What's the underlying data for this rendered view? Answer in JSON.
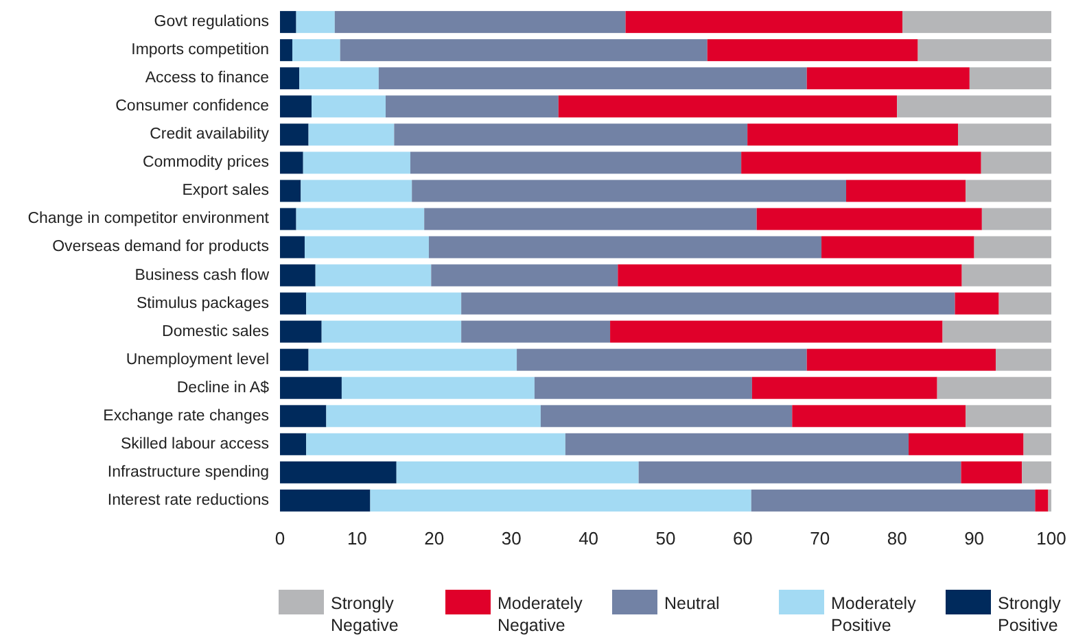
{
  "chart_data": {
    "type": "bar",
    "orientation": "horizontal",
    "stacked": true,
    "categories": [
      "Govt regulations",
      "Imports competition",
      "Access to finance",
      "Consumer confidence",
      "Credit availability",
      "Commodity prices",
      "Export sales",
      "Change in competitor environment",
      "Overseas demand for products",
      "Business cash flow",
      "Stimulus packages",
      "Domestic sales",
      "Unemployment level",
      "Decline in A$",
      "Exchange rate changes",
      "Skilled labour access",
      "Infrastructure spending",
      "Interest rate reductions"
    ],
    "series": [
      {
        "name": "Strongly Positive",
        "color": "#002a5c",
        "values": [
          2.1,
          1.6,
          2.5,
          4.1,
          3.7,
          3.0,
          2.7,
          2.1,
          3.2,
          4.6,
          3.4,
          5.4,
          3.7,
          8.0,
          6.0,
          3.4,
          15.1,
          11.7
        ]
      },
      {
        "name": "Moderately Positive",
        "color": "#a3daf3",
        "values": [
          5.0,
          6.2,
          10.3,
          9.6,
          11.1,
          13.9,
          14.4,
          16.6,
          16.1,
          15.0,
          20.1,
          18.1,
          27.0,
          25.0,
          27.8,
          33.6,
          31.4,
          49.4
        ]
      },
      {
        "name": "Neutral",
        "color": "#7282a5",
        "values": [
          37.7,
          47.6,
          55.5,
          22.4,
          45.8,
          42.9,
          56.3,
          43.1,
          50.9,
          24.2,
          64.0,
          19.3,
          37.6,
          28.2,
          32.6,
          44.5,
          41.8,
          36.8
        ]
      },
      {
        "name": "Moderately Negative",
        "color": "#e0002a",
        "values": [
          35.9,
          27.3,
          21.1,
          43.9,
          27.3,
          31.1,
          15.5,
          29.2,
          19.8,
          44.6,
          5.7,
          43.1,
          24.5,
          24.0,
          22.5,
          14.9,
          7.9,
          1.7
        ]
      },
      {
        "name": "Strongly Negative",
        "color": "#b5b6b8",
        "values": [
          19.3,
          17.3,
          10.6,
          20.0,
          12.1,
          9.1,
          11.1,
          9.0,
          10.0,
          11.6,
          6.8,
          14.1,
          7.2,
          14.8,
          11.1,
          3.6,
          3.8,
          0.4
        ]
      }
    ],
    "xlim": [
      0,
      100
    ],
    "xticks": [
      0,
      10,
      20,
      30,
      40,
      50,
      60,
      70,
      80,
      90,
      100
    ],
    "grid": false,
    "legend": "bottom"
  }
}
